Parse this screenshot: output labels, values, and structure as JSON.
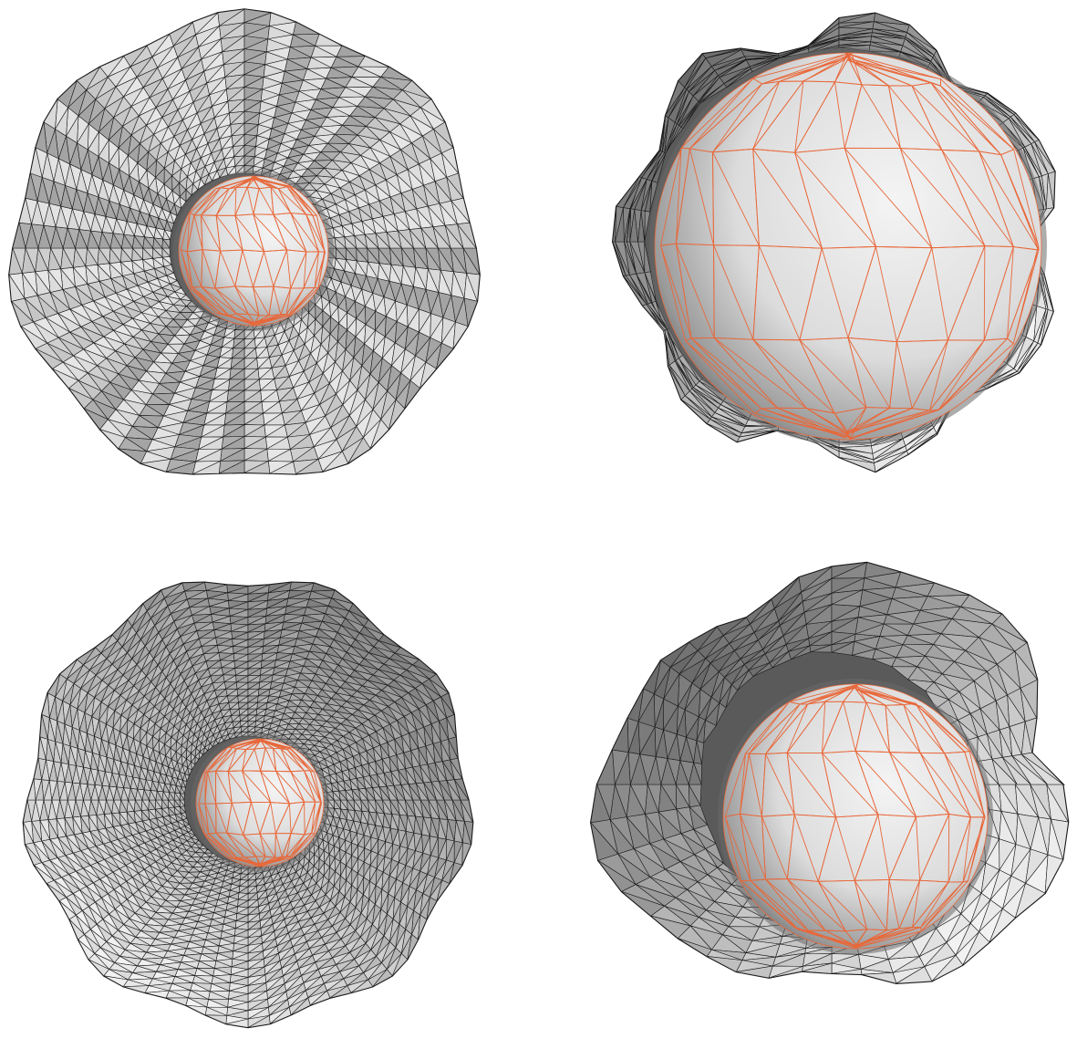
{
  "figure": {
    "panels": [
      {
        "id": "tl",
        "name": "mesh-top-left",
        "outer_style": "radial-fan"
      },
      {
        "id": "tr",
        "name": "mesh-top-right",
        "outer_style": "jagged-shell"
      },
      {
        "id": "bl",
        "name": "mesh-bottom-left",
        "outer_style": "dense-rings"
      },
      {
        "id": "br",
        "name": "mesh-bottom-right",
        "outer_style": "layered-shell"
      }
    ],
    "colors": {
      "background": "#ffffff",
      "mesh_edge": "#1a1a1a",
      "inner_sphere_edge": "#e8683a",
      "shade_light": "#f2f2f2",
      "shade_dark": "#5a5a5a"
    }
  }
}
